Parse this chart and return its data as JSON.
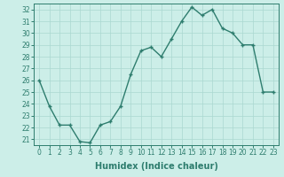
{
  "x": [
    0,
    1,
    2,
    3,
    4,
    5,
    6,
    7,
    8,
    9,
    10,
    11,
    12,
    13,
    14,
    15,
    16,
    17,
    18,
    19,
    20,
    21,
    22,
    23
  ],
  "y": [
    26,
    23.8,
    22.2,
    22.2,
    20.8,
    20.7,
    22.2,
    22.5,
    23.8,
    26.5,
    28.5,
    28.8,
    28.0,
    29.5,
    31.0,
    32.2,
    31.5,
    32.0,
    30.4,
    30.0,
    29.0,
    29.0,
    25.0,
    25.0
  ],
  "line_color": "#2e7d6e",
  "marker": "+",
  "marker_size": 3,
  "bg_color": "#cceee8",
  "grid_color": "#aad8d0",
  "xlabel": "Humidex (Indice chaleur)",
  "ylim": [
    20.5,
    32.5
  ],
  "xlim": [
    -0.5,
    23.5
  ],
  "yticks": [
    21,
    22,
    23,
    24,
    25,
    26,
    27,
    28,
    29,
    30,
    31,
    32
  ],
  "xticks": [
    0,
    1,
    2,
    3,
    4,
    5,
    6,
    7,
    8,
    9,
    10,
    11,
    12,
    13,
    14,
    15,
    16,
    17,
    18,
    19,
    20,
    21,
    22,
    23
  ],
  "xlabel_fontsize": 7,
  "tick_fontsize": 5.5,
  "line_width": 1.0,
  "marker_edge_width": 1.0
}
